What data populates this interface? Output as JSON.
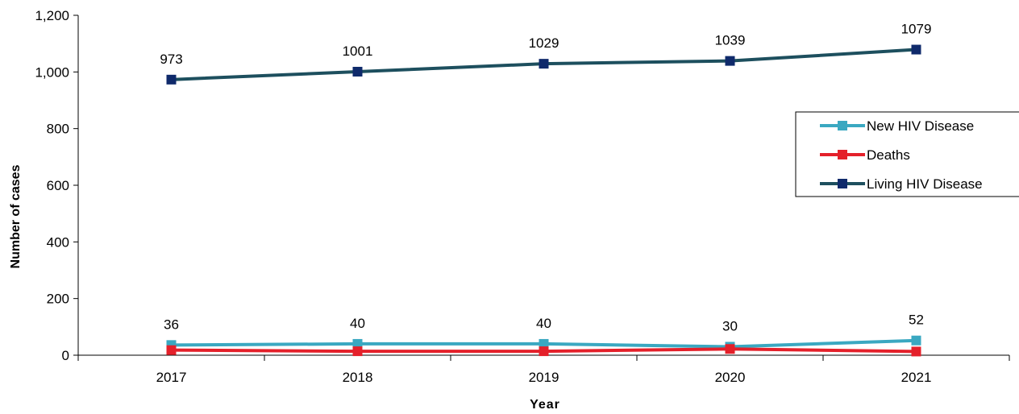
{
  "chart_data": {
    "type": "line",
    "title": "",
    "xlabel": "Year",
    "ylabel": "Number of cases",
    "categories": [
      "2017",
      "2018",
      "2019",
      "2020",
      "2021"
    ],
    "ylim": [
      0,
      1200
    ],
    "yticks": [
      0,
      200,
      400,
      600,
      800,
      1000,
      1200
    ],
    "ytick_labels": [
      "0",
      "200",
      "400",
      "600",
      "800",
      "1,000",
      "1,200"
    ],
    "grid": false,
    "legend_position": "right",
    "series": [
      {
        "name": "New HIV Disease",
        "values": [
          36,
          40,
          40,
          30,
          52
        ],
        "color": "#3aa8c1",
        "marker": "#3aa8c1",
        "labels": [
          "36",
          "40",
          "40",
          "30",
          "52"
        ]
      },
      {
        "name": "Deaths",
        "values": [
          18,
          14,
          14,
          22,
          13
        ],
        "color": "#e4202a",
        "marker": "#e4202a",
        "labels": []
      },
      {
        "name": "Living HIV Disease",
        "values": [
          973,
          1001,
          1029,
          1039,
          1079
        ],
        "color": "#1d4f5e",
        "marker": "#0f2a6b",
        "labels": [
          "973",
          "1001",
          "1029",
          "1039",
          "1079"
        ]
      }
    ]
  }
}
